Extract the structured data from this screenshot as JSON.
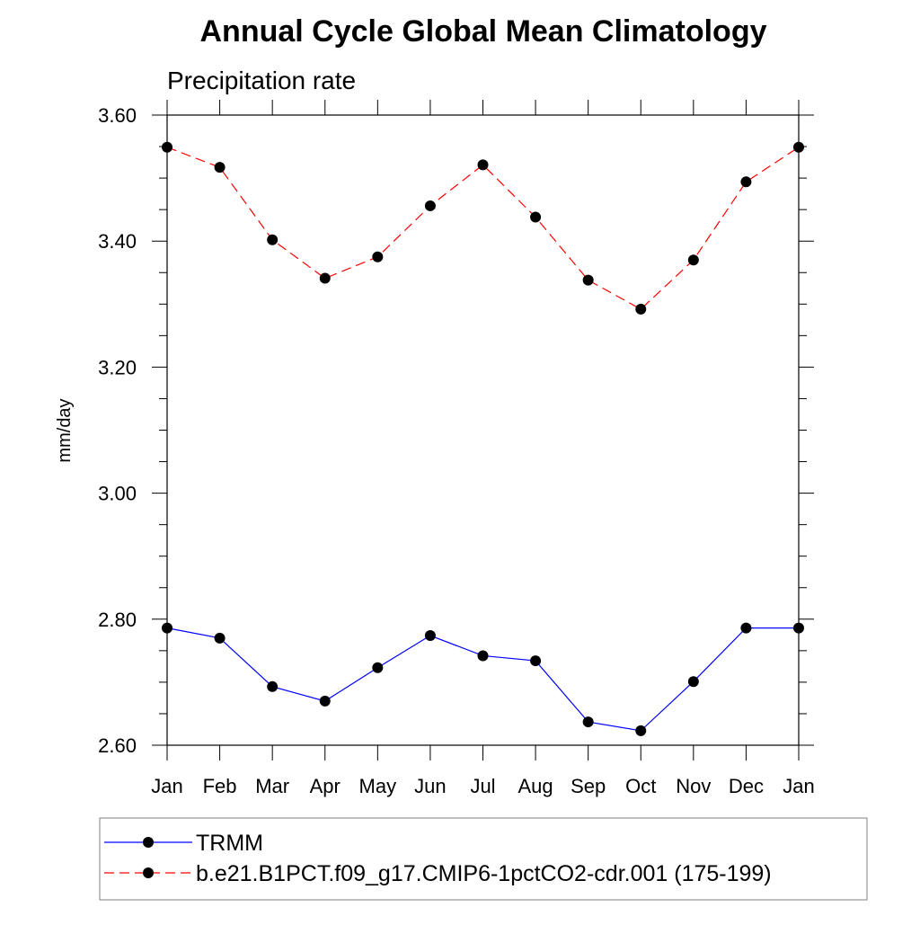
{
  "chart_data": {
    "type": "line",
    "title": "Annual Cycle Global Mean Climatology",
    "subtitle": "Precipitation rate",
    "ylabel": "mm/day",
    "xlabel": "",
    "ylim": [
      2.6,
      3.6
    ],
    "yticks": [
      "2.60",
      "2.80",
      "3.00",
      "3.20",
      "3.40",
      "3.60"
    ],
    "categories": [
      "Jan",
      "Feb",
      "Mar",
      "Apr",
      "May",
      "Jun",
      "Jul",
      "Aug",
      "Sep",
      "Oct",
      "Nov",
      "Dec",
      "Jan"
    ],
    "grid": false,
    "legend_position": "bottom",
    "series": [
      {
        "name": "TRMM",
        "color": "#0000ff",
        "dash": "solid",
        "marker": "filled-circle",
        "values": [
          2.786,
          2.77,
          2.693,
          2.67,
          2.723,
          2.774,
          2.742,
          2.734,
          2.637,
          2.623,
          2.701,
          2.786,
          2.786
        ]
      },
      {
        "name": "b.e21.B1PCT.f09_g17.CMIP6-1pctCO2-cdr.001 (175-199)",
        "color": "#ff0000",
        "dash": "dashed",
        "marker": "filled-circle",
        "values": [
          3.549,
          3.517,
          3.402,
          3.341,
          3.375,
          3.456,
          3.521,
          3.438,
          3.338,
          3.292,
          3.37,
          3.494,
          3.549
        ]
      }
    ]
  }
}
